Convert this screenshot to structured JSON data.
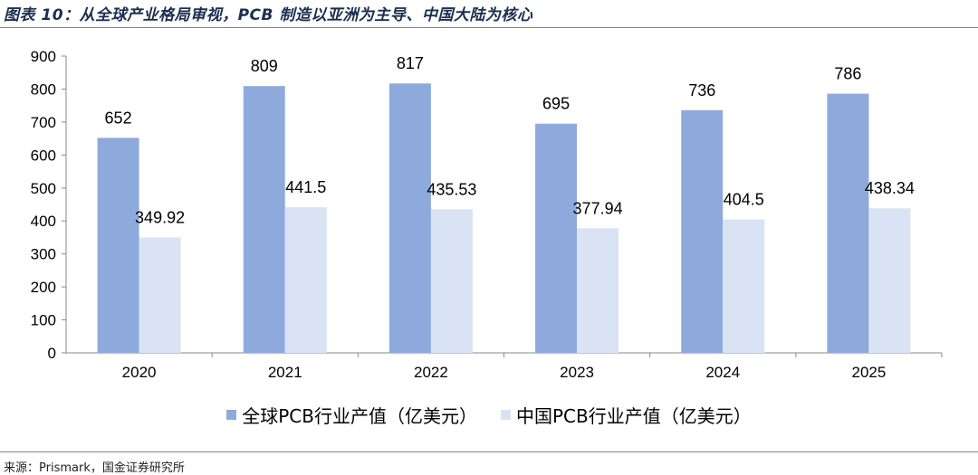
{
  "title": "图表 10：从全球产业格局审视，PCB 制造以亚洲为主导、中国大陆为核心",
  "source": "来源：Prismark，国金证券研究所",
  "colors": {
    "global": "#8eaadc",
    "china": "#dae3f3",
    "rule": "#6a8aa5"
  },
  "chart_data": {
    "type": "bar",
    "categories": [
      "2020",
      "2021",
      "2022",
      "2023",
      "2024",
      "2025"
    ],
    "series": [
      {
        "name": "全球PCB行业产值（亿美元）",
        "values": [
          652,
          809,
          817,
          695,
          736,
          786
        ],
        "labels": [
          "652",
          "809",
          "817",
          "695",
          "736",
          "786"
        ]
      },
      {
        "name": "中国PCB行业产值（亿美元）",
        "values": [
          349.92,
          441.5,
          435.53,
          377.94,
          404.5,
          438.34
        ],
        "labels": [
          "349.92",
          "441.5",
          "435.53",
          "377.94",
          "404.5",
          "438.34"
        ]
      }
    ],
    "ylim": [
      0,
      900
    ],
    "yticks": [
      "0",
      "100",
      "200",
      "300",
      "400",
      "500",
      "600",
      "700",
      "800",
      "900"
    ],
    "grid": false,
    "legend": "bottom"
  }
}
